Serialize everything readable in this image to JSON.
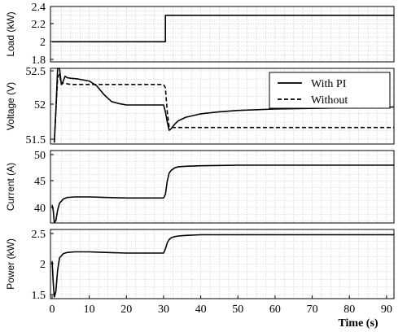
{
  "chart_data": [
    {
      "type": "line",
      "ylabel": "Load (kW)",
      "ylim": [
        1.8,
        2.4
      ],
      "yticks": [
        1.8,
        2,
        2.2,
        2.4
      ],
      "ytick_labels": [
        "1.8",
        "2",
        "2.2",
        "2.4"
      ],
      "xlim": [
        0,
        92
      ],
      "grid": true,
      "series": [
        {
          "name": "",
          "style": "solid",
          "color": "#000000",
          "x": [
            0,
            30.5,
            30.5,
            92
          ],
          "y": [
            2.0,
            2.0,
            2.3,
            2.3
          ]
        }
      ]
    },
    {
      "type": "line",
      "ylabel": "Voltage (V)",
      "ylim": [
        51.45,
        52.9
      ],
      "yticks": [
        51.5,
        52,
        52.5
      ],
      "ytick_labels": [
        "51.5",
        "52",
        "52.5"
      ],
      "xlim": [
        0,
        92
      ],
      "grid": true,
      "legend": {
        "position": "top-right",
        "entries": [
          "With PI",
          "Without"
        ]
      },
      "series": [
        {
          "name": "With PI",
          "style": "solid",
          "color": "#000000",
          "x": [
            0.6,
            1.0,
            1.5,
            2.0,
            2.5,
            3.0,
            3.5,
            4.0,
            5.0,
            7.0,
            10.0,
            12.0,
            14.0,
            16.0,
            18.0,
            20.0,
            25.0,
            30.0,
            30.5,
            31.0,
            31.5,
            32.0,
            33.0,
            34.0,
            36.0,
            40.0,
            45.0,
            50.0,
            60.0,
            70.0,
            80.0,
            92.0
          ],
          "y": [
            51.45,
            51.9,
            52.6,
            52.85,
            52.3,
            52.35,
            52.42,
            52.4,
            52.39,
            52.38,
            52.35,
            52.28,
            52.15,
            52.05,
            52.02,
            52.0,
            52.0,
            52.0,
            51.9,
            51.75,
            51.63,
            51.65,
            51.72,
            51.77,
            51.82,
            51.87,
            51.9,
            51.92,
            51.94,
            51.95,
            51.96,
            51.97
          ]
        },
        {
          "name": "Without",
          "style": "dashed",
          "color": "#000000",
          "x": [
            0.6,
            1.0,
            1.5,
            2.0,
            2.5,
            3.0,
            5.0,
            10.0,
            20.0,
            30.0,
            30.5,
            31.0,
            31.5,
            32.0,
            40.0,
            60.0,
            92.0
          ],
          "y": [
            51.45,
            51.9,
            52.4,
            52.45,
            52.3,
            52.32,
            52.3,
            52.3,
            52.3,
            52.3,
            52.25,
            51.9,
            51.68,
            51.67,
            51.67,
            51.67,
            51.67
          ]
        }
      ]
    },
    {
      "type": "line",
      "ylabel": "Current (A)",
      "ylim": [
        37,
        50
      ],
      "yticks": [
        40,
        45,
        50
      ],
      "ytick_labels": [
        "40",
        "45",
        "50"
      ],
      "xlim": [
        0,
        92
      ],
      "grid": true,
      "series": [
        {
          "name": "",
          "style": "solid",
          "color": "#000000",
          "x": [
            0.0,
            0.3,
            0.6,
            1.0,
            1.5,
            2.0,
            3.0,
            4.0,
            6.0,
            10.0,
            15.0,
            20.0,
            25.0,
            30.0,
            30.5,
            31.0,
            31.5,
            32.0,
            33.0,
            34.0,
            36.0,
            40.0,
            50.0,
            60.0,
            92.0
          ],
          "y": [
            40.5,
            39.5,
            37.2,
            37.5,
            39.5,
            40.8,
            41.6,
            41.9,
            42.0,
            42.0,
            41.9,
            41.8,
            41.8,
            41.8,
            42.5,
            45.0,
            46.5,
            47.0,
            47.5,
            47.7,
            47.8,
            47.9,
            48.0,
            48.0,
            48.0
          ]
        }
      ]
    },
    {
      "type": "line",
      "ylabel": "Power (kW)",
      "xlabel": "Time (s)",
      "ylim": [
        1.45,
        2.75
      ],
      "yticks": [
        1.5,
        2,
        2.5
      ],
      "ytick_labels": [
        "1.5",
        "2",
        "2.5"
      ],
      "xlim": [
        0,
        92
      ],
      "xticks": [
        0,
        10,
        20,
        30,
        40,
        50,
        60,
        70,
        80,
        90
      ],
      "xtick_labels": [
        "0",
        "10",
        "20",
        "30",
        "40",
        "50",
        "60",
        "70",
        "80",
        "90"
      ],
      "grid": true,
      "series": [
        {
          "name": "",
          "style": "solid",
          "color": "#000000",
          "x": [
            0.0,
            0.3,
            0.6,
            1.0,
            1.5,
            2.0,
            3.0,
            4.0,
            6.0,
            10.0,
            15.0,
            20.0,
            25.0,
            30.0,
            30.5,
            31.0,
            31.5,
            32.0,
            33.0,
            34.0,
            36.0,
            40.0,
            50.0,
            60.0,
            92.0
          ],
          "y": [
            2.05,
            1.7,
            1.46,
            1.55,
            1.9,
            2.1,
            2.17,
            2.19,
            2.2,
            2.2,
            2.19,
            2.18,
            2.18,
            2.18,
            2.25,
            2.35,
            2.4,
            2.43,
            2.45,
            2.46,
            2.47,
            2.48,
            2.48,
            2.48,
            2.48
          ]
        }
      ]
    }
  ]
}
